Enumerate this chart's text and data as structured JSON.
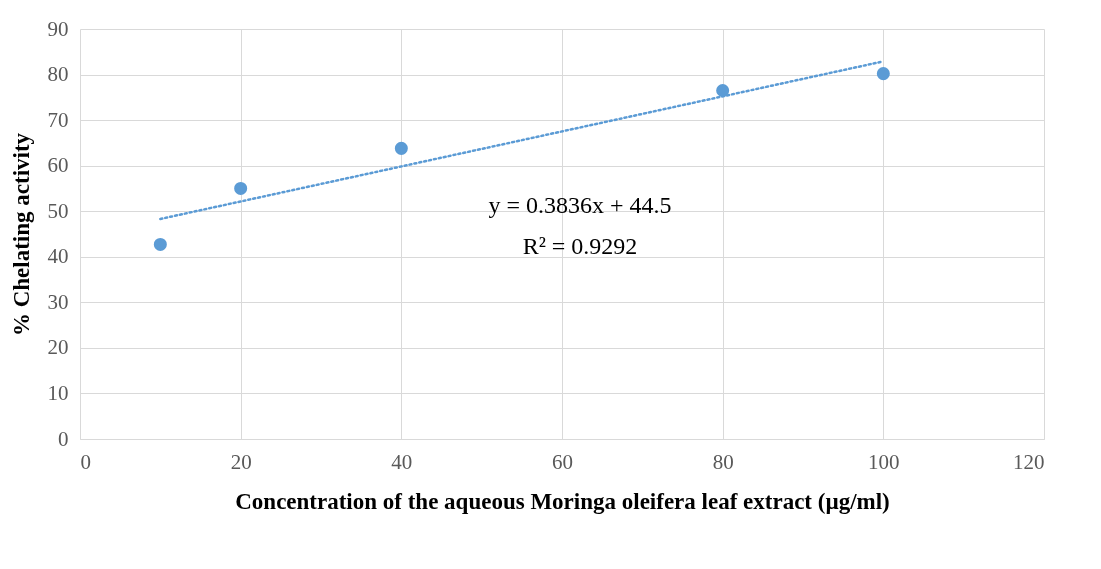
{
  "chart_data": {
    "type": "scatter",
    "xlabel": "Concentration of the aqueous Moringa oleifera leaf extract (µg/ml)",
    "ylabel": "% Chelating activity",
    "xlim": [
      0,
      120
    ],
    "xticks": [
      0,
      20,
      40,
      60,
      80,
      100,
      120
    ],
    "ylim": [
      0,
      90
    ],
    "yticks": [
      0,
      10,
      20,
      30,
      40,
      50,
      60,
      70,
      80,
      90
    ],
    "grid": true,
    "series": [
      {
        "type": "scatter",
        "color": "#5b9bd5",
        "marker": "circle",
        "x": [
          10,
          20,
          40,
          80,
          100
        ],
        "values": [
          42.7,
          55,
          63.8,
          76.5,
          80.2
        ]
      },
      {
        "type": "line",
        "color": "#5b9bd5",
        "marker": "none",
        "line_style": "dotted",
        "x": [
          10,
          100
        ],
        "values": [
          48.3,
          82.9
        ]
      }
    ],
    "annotations": [
      "y = 0.3836x + 44.5",
      "R² = 0.9292"
    ]
  }
}
